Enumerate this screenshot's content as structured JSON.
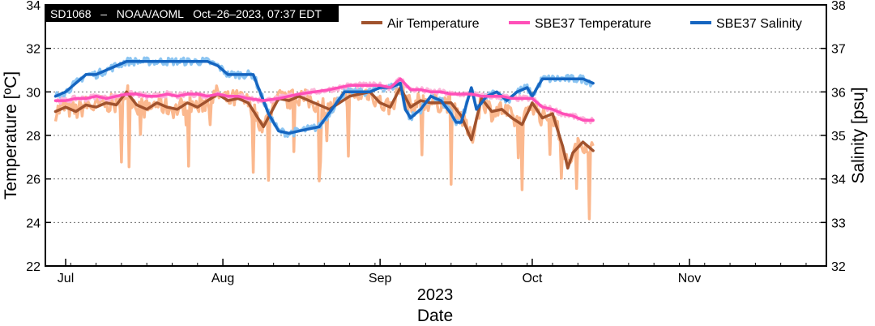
{
  "chart_data": {
    "type": "line",
    "header": "SD1068   –   NOAA/AOML   Oct–26–2023, 07:37 EDT",
    "xlabel": "Date",
    "xlabel_year": "2023",
    "ylabel_left": "Temperature [ºC]",
    "ylabel_right": "Salinity [psu]",
    "ylim_left": [
      22,
      34
    ],
    "ylim_right": [
      32,
      38
    ],
    "yticks_left": [
      "22",
      "24",
      "26",
      "28",
      "30",
      "32",
      "34"
    ],
    "yticks_right": [
      "32",
      "33",
      "34",
      "35",
      "36",
      "37",
      "38"
    ],
    "xlim": [
      "2023-06-27",
      "2023-11-28"
    ],
    "xticks": [
      {
        "label": "Jul",
        "date": "2023-07-01"
      },
      {
        "label": "Aug",
        "date": "2023-08-01"
      },
      {
        "label": "Sep",
        "date": "2023-09-01"
      },
      {
        "label": "Oct",
        "date": "2023-10-01"
      },
      {
        "label": "Nov",
        "date": "2023-11-01"
      }
    ],
    "grid": "horizontal dashed",
    "legend_position": "top-right",
    "series": [
      {
        "name": "Air Temperature",
        "axis": "left",
        "color": "#a0522d",
        "raw_color": "#fbb88e",
        "x": [
          "2023-06-29",
          "2023-07-01",
          "2023-07-03",
          "2023-07-05",
          "2023-07-07",
          "2023-07-09",
          "2023-07-11",
          "2023-07-13",
          "2023-07-15",
          "2023-07-17",
          "2023-07-19",
          "2023-07-21",
          "2023-07-23",
          "2023-07-25",
          "2023-07-27",
          "2023-07-29",
          "2023-07-31",
          "2023-08-02",
          "2023-08-04",
          "2023-08-06",
          "2023-08-09",
          "2023-08-12",
          "2023-08-14",
          "2023-08-16",
          "2023-08-19",
          "2023-08-22",
          "2023-08-26",
          "2023-08-30",
          "2023-09-01",
          "2023-09-03",
          "2023-09-05",
          "2023-09-07",
          "2023-09-09",
          "2023-09-11",
          "2023-09-13",
          "2023-09-15",
          "2023-09-17",
          "2023-09-19",
          "2023-09-21",
          "2023-09-23",
          "2023-09-25",
          "2023-09-27",
          "2023-09-29",
          "2023-10-01",
          "2023-10-03",
          "2023-10-05",
          "2023-10-07",
          "2023-10-08",
          "2023-10-09",
          "2023-10-11",
          "2023-10-13"
        ],
        "values": [
          29.1,
          29.3,
          29.1,
          29.4,
          29.3,
          29.5,
          29.4,
          30.0,
          29.4,
          29.2,
          29.5,
          29.3,
          29.2,
          29.5,
          29.3,
          29.6,
          29.9,
          29.6,
          29.7,
          29.5,
          28.4,
          29.7,
          29.6,
          29.8,
          29.5,
          29.2,
          29.8,
          30.0,
          29.5,
          29.3,
          30.2,
          29.3,
          29.6,
          29.5,
          29.5,
          29.5,
          28.9,
          27.8,
          29.7,
          29.1,
          29.2,
          28.8,
          28.5,
          29.5,
          28.8,
          29.0,
          27.5,
          26.5,
          27.2,
          27.7,
          27.3
        ]
      },
      {
        "name": "SBE37 Temperature",
        "axis": "left",
        "color": "#ff4fb8",
        "raw_color": "#fcb6da",
        "x": [
          "2023-06-29",
          "2023-07-01",
          "2023-07-03",
          "2023-07-05",
          "2023-07-07",
          "2023-07-09",
          "2023-07-11",
          "2023-07-13",
          "2023-07-15",
          "2023-07-17",
          "2023-07-19",
          "2023-07-21",
          "2023-07-23",
          "2023-07-25",
          "2023-07-27",
          "2023-07-29",
          "2023-07-31",
          "2023-08-02",
          "2023-08-04",
          "2023-08-06",
          "2023-08-09",
          "2023-08-12",
          "2023-08-14",
          "2023-08-16",
          "2023-08-19",
          "2023-08-22",
          "2023-08-26",
          "2023-08-30",
          "2023-09-01",
          "2023-09-03",
          "2023-09-05",
          "2023-09-07",
          "2023-09-09",
          "2023-09-11",
          "2023-09-13",
          "2023-09-15",
          "2023-09-17",
          "2023-09-19",
          "2023-09-21",
          "2023-09-23",
          "2023-09-25",
          "2023-09-27",
          "2023-09-29",
          "2023-10-01",
          "2023-10-03",
          "2023-10-05",
          "2023-10-07",
          "2023-10-09",
          "2023-10-11",
          "2023-10-13"
        ],
        "values": [
          29.6,
          29.6,
          29.7,
          29.7,
          29.8,
          29.7,
          29.8,
          29.9,
          29.9,
          29.8,
          29.8,
          29.9,
          29.8,
          29.9,
          29.9,
          29.8,
          29.9,
          29.8,
          29.8,
          29.7,
          29.6,
          29.7,
          29.8,
          29.9,
          30.0,
          30.1,
          30.3,
          30.3,
          30.3,
          30.2,
          30.6,
          30.1,
          30.1,
          30.0,
          30.0,
          29.9,
          29.9,
          29.9,
          29.8,
          29.8,
          29.8,
          29.7,
          29.7,
          29.7,
          29.3,
          29.2,
          29.0,
          28.9,
          28.7,
          28.7
        ]
      },
      {
        "name": "SBE37 Salinity",
        "axis": "right",
        "color": "#1565c0",
        "raw_color": "#8cc5f2",
        "x": [
          "2023-06-29",
          "2023-07-01",
          "2023-07-03",
          "2023-07-05",
          "2023-07-07",
          "2023-07-09",
          "2023-07-11",
          "2023-07-13",
          "2023-07-15",
          "2023-07-18",
          "2023-07-21",
          "2023-07-24",
          "2023-07-27",
          "2023-07-29",
          "2023-07-31",
          "2023-08-02",
          "2023-08-04",
          "2023-08-07",
          "2023-08-10",
          "2023-08-12",
          "2023-08-14",
          "2023-08-16",
          "2023-08-20",
          "2023-08-25",
          "2023-08-30",
          "2023-09-01",
          "2023-09-03",
          "2023-09-05",
          "2023-09-06",
          "2023-09-07",
          "2023-09-09",
          "2023-09-11",
          "2023-09-13",
          "2023-09-15",
          "2023-09-16",
          "2023-09-17",
          "2023-09-19",
          "2023-09-20",
          "2023-09-22",
          "2023-09-24",
          "2023-09-26",
          "2023-09-28",
          "2023-09-30",
          "2023-10-01",
          "2023-10-03",
          "2023-10-05",
          "2023-10-07",
          "2023-10-09",
          "2023-10-11",
          "2023-10-13"
        ],
        "values": [
          35.9,
          36.0,
          36.2,
          36.4,
          36.4,
          36.5,
          36.6,
          36.7,
          36.7,
          36.7,
          36.7,
          36.7,
          36.7,
          36.7,
          36.6,
          36.4,
          36.4,
          36.4,
          35.5,
          35.1,
          35.05,
          35.1,
          35.2,
          36.0,
          36.0,
          36.1,
          36.1,
          36.2,
          35.6,
          35.4,
          35.6,
          35.9,
          35.8,
          35.5,
          35.3,
          35.3,
          36.1,
          35.6,
          35.9,
          36.0,
          35.8,
          36.0,
          36.1,
          35.9,
          36.3,
          36.3,
          36.3,
          36.3,
          36.3,
          36.2
        ]
      }
    ]
  }
}
